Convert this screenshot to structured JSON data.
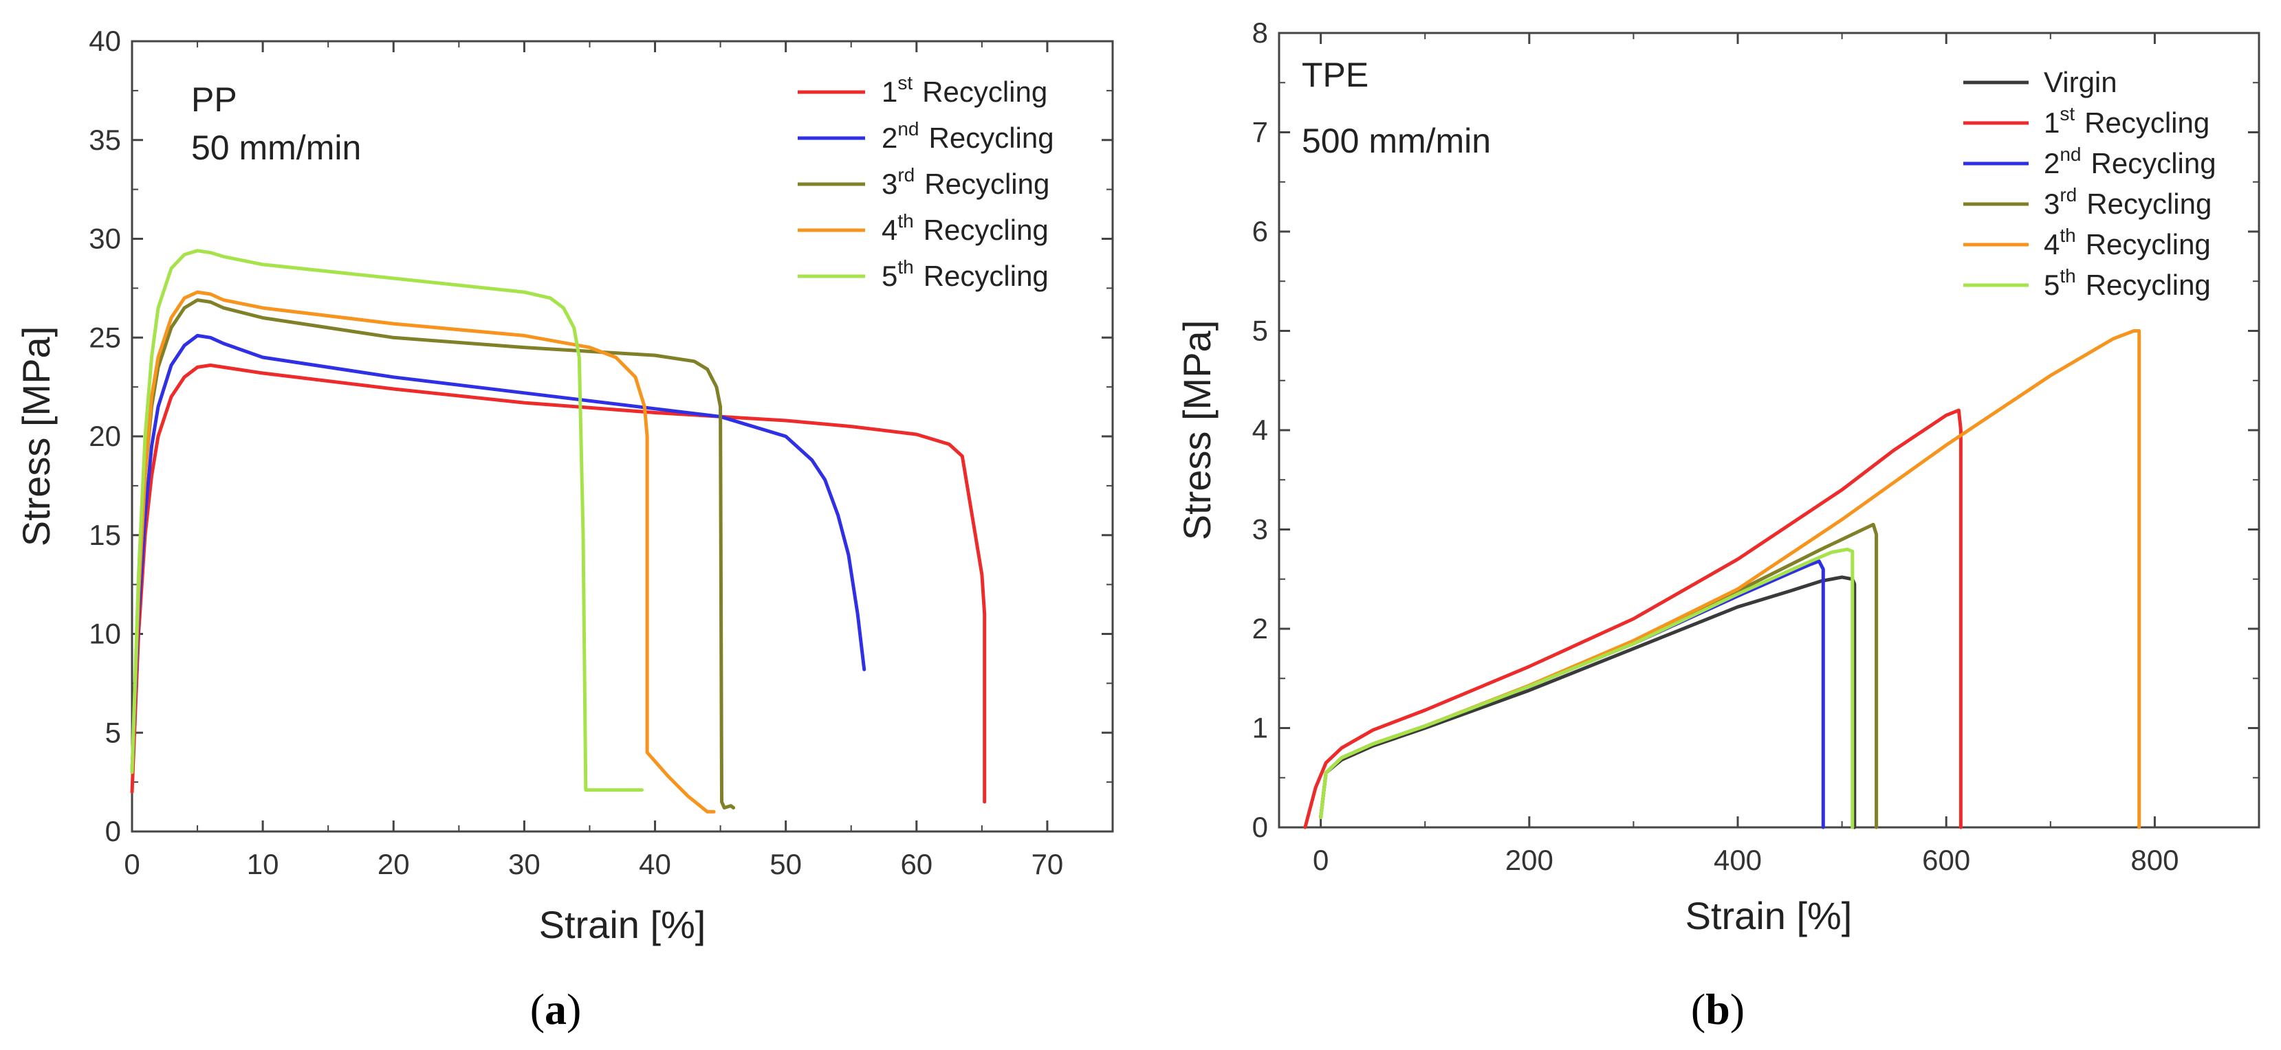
{
  "chart_data": [
    {
      "type": "line",
      "annotation": [
        "PP",
        "50 mm/min"
      ],
      "xlabel": "Strain [%]",
      "ylabel": "Stress [MPa]",
      "xlim": [
        0,
        75
      ],
      "ylim": [
        0,
        40
      ],
      "xticks": [
        0,
        10,
        20,
        30,
        40,
        50,
        60,
        70
      ],
      "yticks": [
        0,
        5,
        10,
        15,
        20,
        25,
        30,
        35,
        40
      ],
      "grid": false,
      "legend": "top-right",
      "sublabel": "(a)",
      "series": [
        {
          "name": "1st Recycling",
          "name_base": "1",
          "name_sup": "st",
          "name_rest": "Recycling",
          "color": "#ee2b2b",
          "x": [
            0,
            0.5,
            1,
            1.5,
            2,
            3,
            4,
            5,
            6,
            7,
            10,
            20,
            30,
            40,
            50,
            55,
            60,
            62.5,
            63.5,
            64.5,
            65,
            65.2,
            65.2
          ],
          "y": [
            2,
            10,
            15,
            18,
            20,
            22,
            23,
            23.5,
            23.6,
            23.5,
            23.2,
            22.4,
            21.7,
            21.2,
            20.8,
            20.5,
            20.1,
            19.6,
            19.0,
            15,
            13,
            11,
            1.5
          ]
        },
        {
          "name": "2nd Recycling",
          "name_base": "2",
          "name_sup": "nd",
          "name_rest": "Recycling",
          "color": "#2f2fe6",
          "x": [
            0,
            0.5,
            1,
            1.5,
            2,
            3,
            4,
            5,
            6,
            7,
            10,
            20,
            30,
            40,
            45,
            50,
            52,
            53,
            54,
            54.8,
            55.5,
            56
          ],
          "y": [
            3,
            11,
            16,
            19.5,
            21.5,
            23.6,
            24.6,
            25.1,
            25.0,
            24.7,
            24.0,
            23.0,
            22.2,
            21.4,
            21.0,
            20.0,
            18.8,
            17.8,
            16,
            14,
            11,
            8.2
          ]
        },
        {
          "name": "3rd Recycling",
          "name_base": "3",
          "name_sup": "rd",
          "name_rest": "Recycling",
          "color": "#7f8027",
          "x": [
            0,
            0.5,
            1,
            1.5,
            2,
            3,
            4,
            5,
            6,
            7,
            10,
            20,
            30,
            40,
            43,
            44,
            44.7,
            45,
            45.1,
            45.3,
            45.8,
            46
          ],
          "y": [
            3,
            12,
            18,
            21.5,
            23.5,
            25.5,
            26.5,
            26.9,
            26.8,
            26.5,
            26.0,
            25.0,
            24.5,
            24.1,
            23.8,
            23.4,
            22.5,
            21.5,
            1.5,
            1.2,
            1.3,
            1.2
          ]
        },
        {
          "name": "4th Recycling",
          "name_base": "4",
          "name_sup": "th",
          "name_rest": "Recycling",
          "color": "#f7941d",
          "x": [
            0,
            0.5,
            1,
            1.5,
            2,
            3,
            4,
            5,
            6,
            7,
            10,
            20,
            30,
            35,
            37,
            38.5,
            39.2,
            39.4,
            39.4,
            41,
            42.5,
            44,
            44.5
          ],
          "y": [
            3,
            12,
            18,
            22,
            24,
            26,
            27,
            27.3,
            27.2,
            26.9,
            26.5,
            25.7,
            25.1,
            24.5,
            24.0,
            23.0,
            21.5,
            20,
            4,
            2.8,
            1.8,
            1.0,
            1.0
          ]
        },
        {
          "name": "5th Recycling",
          "name_base": "5",
          "name_sup": "th",
          "name_rest": "Recycling",
          "color": "#a6e34a",
          "x": [
            0,
            0.5,
            1,
            1.5,
            2,
            3,
            4,
            5,
            6,
            7,
            10,
            20,
            30,
            32,
            33,
            33.8,
            34.2,
            34.5,
            34.7,
            36,
            39
          ],
          "y": [
            3,
            13,
            20,
            24,
            26.5,
            28.5,
            29.2,
            29.4,
            29.3,
            29.1,
            28.7,
            28.0,
            27.3,
            27.0,
            26.5,
            25.5,
            24,
            15,
            2.1,
            2.1,
            2.1
          ]
        }
      ]
    },
    {
      "type": "line",
      "annotation": [
        "TPE",
        "500 mm/min"
      ],
      "xlabel": "Strain [%]",
      "ylabel": "Stress [MPa]",
      "xlim": [
        -40,
        900
      ],
      "ylim": [
        0,
        8
      ],
      "xticks": [
        0,
        200,
        400,
        600,
        800
      ],
      "yticks": [
        0,
        1,
        2,
        3,
        4,
        5,
        6,
        7,
        8
      ],
      "grid": false,
      "legend": "top-right",
      "sublabel": "(b)",
      "series": [
        {
          "name": "Virgin",
          "name_base": "Virgin",
          "name_sup": "",
          "name_rest": "",
          "color": "#3a3a3a",
          "x": [
            0,
            5,
            20,
            50,
            100,
            200,
            300,
            400,
            450,
            480,
            500,
            510,
            512,
            512
          ],
          "y": [
            0.1,
            0.55,
            0.68,
            0.82,
            1.0,
            1.38,
            1.8,
            2.22,
            2.38,
            2.48,
            2.52,
            2.5,
            2.45,
            0
          ]
        },
        {
          "name": "1st Recycling",
          "name_base": "1",
          "name_sup": "st",
          "name_rest": " Recycling",
          "color": "#ee2b2b",
          "x": [
            -15,
            -5,
            5,
            20,
            50,
            100,
            200,
            300,
            400,
            500,
            550,
            600,
            612,
            614,
            614
          ],
          "y": [
            0,
            0.4,
            0.65,
            0.8,
            0.98,
            1.18,
            1.62,
            2.1,
            2.7,
            3.4,
            3.8,
            4.15,
            4.2,
            4.0,
            0
          ]
        },
        {
          "name": "2nd Recycling",
          "name_base": "2",
          "name_sup": "nd",
          "name_rest": " Recycling",
          "color": "#2f2fe6",
          "x": [
            0,
            5,
            20,
            50,
            100,
            200,
            300,
            400,
            450,
            470,
            478,
            482,
            482
          ],
          "y": [
            0.1,
            0.55,
            0.7,
            0.84,
            1.02,
            1.42,
            1.85,
            2.33,
            2.56,
            2.65,
            2.68,
            2.6,
            0
          ]
        },
        {
          "name": "3rd Recycling",
          "name_base": "3",
          "name_sup": "rd",
          "name_rest": " Recycling",
          "color": "#7f8027",
          "x": [
            0,
            5,
            20,
            50,
            100,
            200,
            300,
            400,
            480,
            520,
            530,
            533,
            533
          ],
          "y": [
            0.1,
            0.55,
            0.7,
            0.84,
            1.02,
            1.42,
            1.86,
            2.38,
            2.8,
            3.0,
            3.05,
            2.95,
            0
          ]
        },
        {
          "name": "4th Recycling",
          "name_base": "4",
          "name_sup": "th",
          "name_rest": " Recycling",
          "color": "#f7941d",
          "x": [
            0,
            5,
            20,
            50,
            100,
            200,
            300,
            400,
            500,
            600,
            700,
            760,
            780,
            785,
            785
          ],
          "y": [
            0.1,
            0.55,
            0.7,
            0.84,
            1.02,
            1.43,
            1.88,
            2.4,
            3.1,
            3.85,
            4.55,
            4.92,
            5.0,
            5.0,
            0
          ]
        },
        {
          "name": "5th Recycling",
          "name_base": "5",
          "name_sup": "th",
          "name_rest": " Recycling",
          "color": "#a6e34a",
          "x": [
            0,
            5,
            20,
            50,
            100,
            200,
            300,
            400,
            470,
            490,
            505,
            510,
            510
          ],
          "y": [
            0.1,
            0.55,
            0.7,
            0.84,
            1.02,
            1.42,
            1.85,
            2.35,
            2.68,
            2.77,
            2.8,
            2.78,
            0
          ]
        }
      ]
    }
  ]
}
